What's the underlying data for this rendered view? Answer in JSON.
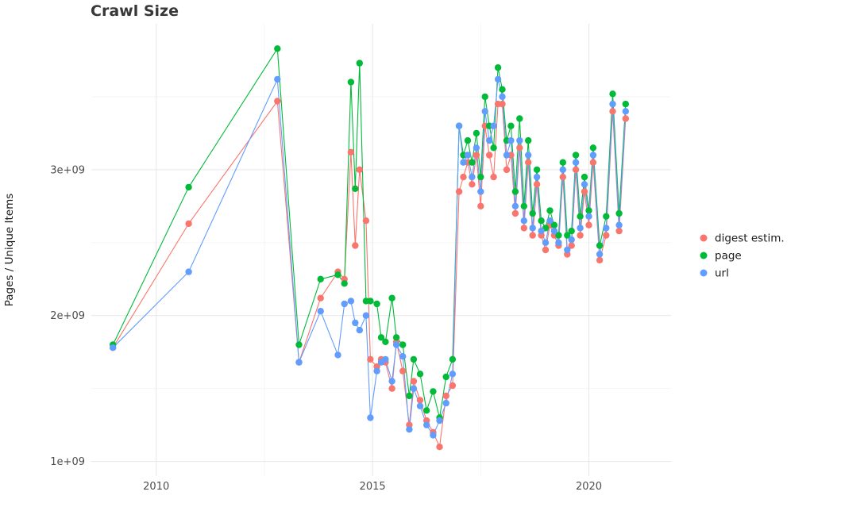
{
  "chart_data": {
    "type": "line",
    "title": "Crawl Size",
    "xlabel": "",
    "ylabel": "Pages / Unique Items",
    "y_unit": "pages (scientific notation, 1e+09 = 1 billion)",
    "xlim": [
      2008.5,
      2021.9
    ],
    "ylim": [
      0.9,
      4.0
    ],
    "grid": true,
    "legend_position": "right",
    "x_ticks": [
      {
        "value": 2010,
        "label": "2010"
      },
      {
        "value": 2015,
        "label": "2015"
      },
      {
        "value": 2020,
        "label": "2020"
      }
    ],
    "y_ticks": [
      {
        "value": 1,
        "label": "1e+09"
      },
      {
        "value": 2,
        "label": "2e+09"
      },
      {
        "value": 3,
        "label": "3e+09"
      }
    ],
    "x_minor": [
      2012.5,
      2017.5
    ],
    "y_minor": [
      1.5,
      2.5,
      3.5
    ],
    "x": [
      2009.0,
      2010.75,
      2012.8,
      2013.3,
      2013.8,
      2014.2,
      2014.35,
      2014.5,
      2014.6,
      2014.7,
      2014.85,
      2014.95,
      2015.1,
      2015.2,
      2015.3,
      2015.45,
      2015.55,
      2015.7,
      2015.85,
      2015.95,
      2016.1,
      2016.25,
      2016.4,
      2016.55,
      2016.7,
      2016.85,
      2017.0,
      2017.1,
      2017.2,
      2017.3,
      2017.4,
      2017.5,
      2017.6,
      2017.7,
      2017.8,
      2017.9,
      2018.0,
      2018.1,
      2018.2,
      2018.3,
      2018.4,
      2018.5,
      2018.6,
      2018.7,
      2018.8,
      2018.9,
      2019.0,
      2019.1,
      2019.2,
      2019.3,
      2019.4,
      2019.5,
      2019.6,
      2019.7,
      2019.8,
      2019.9,
      2020.0,
      2020.1,
      2020.25,
      2020.4,
      2020.55,
      2020.7,
      2020.85
    ],
    "series": [
      {
        "key": "digest",
        "name": "digest estim.",
        "color": "#F8766D",
        "values": [
          1.78,
          2.63,
          3.47,
          1.68,
          2.12,
          2.3,
          2.25,
          3.12,
          2.48,
          3.0,
          2.65,
          1.7,
          1.65,
          1.7,
          1.68,
          1.5,
          1.82,
          1.62,
          1.25,
          1.55,
          1.42,
          1.28,
          1.2,
          1.1,
          1.45,
          1.52,
          2.85,
          2.95,
          3.05,
          2.9,
          3.1,
          2.75,
          3.3,
          3.1,
          2.95,
          3.45,
          3.45,
          3.0,
          3.1,
          2.7,
          3.15,
          2.6,
          3.05,
          2.55,
          2.9,
          2.55,
          2.45,
          2.62,
          2.55,
          2.48,
          2.95,
          2.42,
          2.48,
          3.0,
          2.55,
          2.85,
          2.62,
          3.05,
          2.38,
          2.55,
          3.4,
          2.58,
          3.35
        ]
      },
      {
        "key": "page",
        "name": "page",
        "color": "#00BA38",
        "values": [
          1.8,
          2.88,
          3.83,
          1.8,
          2.25,
          2.28,
          2.22,
          3.6,
          2.87,
          3.73,
          2.1,
          2.1,
          2.08,
          1.85,
          1.82,
          2.12,
          1.85,
          1.8,
          1.45,
          1.7,
          1.6,
          1.35,
          1.48,
          1.3,
          1.58,
          1.7,
          3.3,
          3.1,
          3.2,
          3.05,
          3.25,
          2.95,
          3.5,
          3.3,
          3.15,
          3.7,
          3.55,
          3.2,
          3.3,
          2.85,
          3.35,
          2.75,
          3.2,
          2.7,
          3.0,
          2.65,
          2.6,
          2.72,
          2.62,
          2.55,
          3.05,
          2.55,
          2.58,
          3.1,
          2.68,
          2.95,
          2.72,
          3.15,
          2.48,
          2.68,
          3.52,
          2.7,
          3.45
        ]
      },
      {
        "key": "url",
        "name": "url",
        "color": "#619CFF",
        "values": [
          1.78,
          2.3,
          3.62,
          1.68,
          2.03,
          1.73,
          2.08,
          2.1,
          1.95,
          1.9,
          2.0,
          1.3,
          1.62,
          1.68,
          1.7,
          1.55,
          1.8,
          1.72,
          1.22,
          1.5,
          1.38,
          1.25,
          1.18,
          1.28,
          1.4,
          1.6,
          3.3,
          3.05,
          3.1,
          2.95,
          3.15,
          2.85,
          3.4,
          3.2,
          3.3,
          3.62,
          3.5,
          3.1,
          3.2,
          2.75,
          3.2,
          2.65,
          3.1,
          2.6,
          2.95,
          2.58,
          2.5,
          2.65,
          2.58,
          2.5,
          3.0,
          2.45,
          2.52,
          3.05,
          2.6,
          2.9,
          2.68,
          3.1,
          2.42,
          2.6,
          3.45,
          2.62,
          3.4
        ]
      }
    ]
  }
}
